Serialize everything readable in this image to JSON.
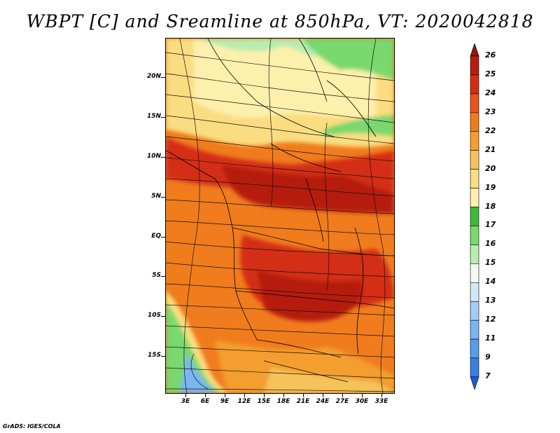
{
  "title": "WBPT [C] and Sreamline at 850hPa, VT: 2020042818",
  "credit": "GrADS: IGES/COLA",
  "y_axis": {
    "labels": [
      "20N",
      "15N",
      "10N",
      "5N",
      "EQ",
      "5S",
      "10S",
      "15S"
    ]
  },
  "x_axis": {
    "labels": [
      "3E",
      "6E",
      "9E",
      "12E",
      "15E",
      "18E",
      "21E",
      "24E",
      "27E",
      "30E",
      "33E"
    ]
  },
  "colorbar": {
    "labels": [
      "7",
      "9",
      "11",
      "12",
      "13",
      "14",
      "15",
      "16",
      "17",
      "18",
      "19",
      "20",
      "21",
      "22",
      "23",
      "24",
      "25",
      "26"
    ],
    "colors": [
      "#1f5bd0",
      "#3a7fe0",
      "#5a9ce8",
      "#7ab5ef",
      "#a3cdf5",
      "#d0e8f8",
      "#f3fbf1",
      "#b8ecb0",
      "#79d86e",
      "#3fb83a",
      "#fdf0ad",
      "#fadd80",
      "#f6c25a",
      "#f39e2f",
      "#f07c1d",
      "#e8541a",
      "#d42d14",
      "#b51e10",
      "#951510"
    ]
  }
}
